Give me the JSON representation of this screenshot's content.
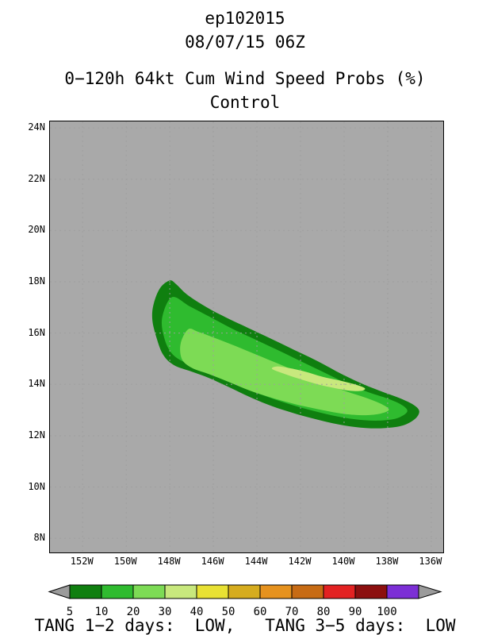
{
  "header": {
    "storm_id": "ep102015",
    "datetime": "08/07/15 06Z",
    "title": "0−120h 64kt Cum Wind Speed Probs (%)",
    "subtitle": "Control"
  },
  "footer": {
    "text": "TANG 1−2 days:  LOW,   TANG 3−5 days:  LOW"
  },
  "chart_data": {
    "type": "heatmap",
    "title": "0−120h 64kt Cum Wind Speed Probs (%)",
    "subtitle": "Control",
    "storm_id": "ep102015",
    "init_time": "08/07/15 06Z",
    "background_color": "#a9a9a9",
    "grid": true,
    "projection": {
      "lon_west": 153.5,
      "lon_east": 135.45,
      "lat_north": 24.25,
      "lat_south": 7.45
    },
    "lat_ticks": [
      {
        "value": 24,
        "label": "24N"
      },
      {
        "value": 22,
        "label": "22N"
      },
      {
        "value": 20,
        "label": "20N"
      },
      {
        "value": 18,
        "label": "18N"
      },
      {
        "value": 16,
        "label": "16N"
      },
      {
        "value": 14,
        "label": "14N"
      },
      {
        "value": 12,
        "label": "12N"
      },
      {
        "value": 10,
        "label": "10N"
      },
      {
        "value": 8,
        "label": "8N"
      }
    ],
    "lon_ticks": [
      {
        "value": 152,
        "label": "152W"
      },
      {
        "value": 150,
        "label": "150W"
      },
      {
        "value": 148,
        "label": "148W"
      },
      {
        "value": 146,
        "label": "146W"
      },
      {
        "value": 144,
        "label": "144W"
      },
      {
        "value": 142,
        "label": "142W"
      },
      {
        "value": 140,
        "label": "140W"
      },
      {
        "value": 138,
        "label": "138W"
      },
      {
        "value": 136,
        "label": "136W"
      }
    ],
    "contours_pct": [
      {
        "level": 5,
        "color": "#0f7f0f",
        "points_lon_lat": [
          [
            148.0,
            18.05
          ],
          [
            148.45,
            17.75
          ],
          [
            148.75,
            17.1
          ],
          [
            148.8,
            16.5
          ],
          [
            148.6,
            15.8
          ],
          [
            148.3,
            15.15
          ],
          [
            147.8,
            14.75
          ],
          [
            147.0,
            14.5
          ],
          [
            146.2,
            14.25
          ],
          [
            145.3,
            13.9
          ],
          [
            144.3,
            13.5
          ],
          [
            143.3,
            13.15
          ],
          [
            142.2,
            12.85
          ],
          [
            141.1,
            12.6
          ],
          [
            140.0,
            12.4
          ],
          [
            139.0,
            12.3
          ],
          [
            138.1,
            12.3
          ],
          [
            137.3,
            12.4
          ],
          [
            136.75,
            12.65
          ],
          [
            136.55,
            12.95
          ],
          [
            136.8,
            13.2
          ],
          [
            137.4,
            13.45
          ],
          [
            138.2,
            13.7
          ],
          [
            139.1,
            14.0
          ],
          [
            140.1,
            14.4
          ],
          [
            141.2,
            14.9
          ],
          [
            142.3,
            15.35
          ],
          [
            143.4,
            15.8
          ],
          [
            144.4,
            16.2
          ],
          [
            145.4,
            16.6
          ],
          [
            146.3,
            17.0
          ],
          [
            147.2,
            17.5
          ],
          [
            147.7,
            17.9
          ]
        ]
      },
      {
        "level": 10,
        "color": "#2fbb2f",
        "points_lon_lat": [
          [
            147.9,
            17.4
          ],
          [
            148.35,
            16.6
          ],
          [
            148.25,
            15.8
          ],
          [
            147.9,
            15.2
          ],
          [
            147.3,
            14.85
          ],
          [
            146.4,
            14.55
          ],
          [
            145.4,
            14.2
          ],
          [
            144.4,
            13.8
          ],
          [
            143.3,
            13.45
          ],
          [
            142.2,
            13.15
          ],
          [
            141.1,
            12.9
          ],
          [
            140.0,
            12.7
          ],
          [
            139.0,
            12.6
          ],
          [
            138.15,
            12.6
          ],
          [
            137.5,
            12.7
          ],
          [
            137.1,
            12.95
          ],
          [
            137.35,
            13.2
          ],
          [
            138.0,
            13.45
          ],
          [
            138.9,
            13.7
          ],
          [
            139.9,
            14.05
          ],
          [
            141.0,
            14.5
          ],
          [
            142.1,
            14.95
          ],
          [
            143.2,
            15.4
          ],
          [
            144.2,
            15.8
          ],
          [
            145.2,
            16.2
          ],
          [
            146.2,
            16.65
          ],
          [
            147.1,
            17.05
          ]
        ]
      },
      {
        "level": 20,
        "color": "#7ddb55",
        "points_lon_lat": [
          [
            147.15,
            16.15
          ],
          [
            147.5,
            15.6
          ],
          [
            147.45,
            15.0
          ],
          [
            147.0,
            14.65
          ],
          [
            146.2,
            14.4
          ],
          [
            145.3,
            14.1
          ],
          [
            144.3,
            13.75
          ],
          [
            143.2,
            13.45
          ],
          [
            142.1,
            13.2
          ],
          [
            141.0,
            13.0
          ],
          [
            140.0,
            12.85
          ],
          [
            139.1,
            12.8
          ],
          [
            138.4,
            12.85
          ],
          [
            137.95,
            13.0
          ],
          [
            138.2,
            13.2
          ],
          [
            138.9,
            13.45
          ],
          [
            139.8,
            13.7
          ],
          [
            140.8,
            14.0
          ],
          [
            141.9,
            14.4
          ],
          [
            143.0,
            14.8
          ],
          [
            144.0,
            15.15
          ],
          [
            145.0,
            15.5
          ],
          [
            145.9,
            15.8
          ],
          [
            146.7,
            16.05
          ]
        ]
      },
      {
        "level": 30,
        "color": "#c8e87d",
        "points_lon_lat": [
          [
            143.3,
            14.6
          ],
          [
            142.7,
            14.4
          ],
          [
            142.0,
            14.2
          ],
          [
            141.2,
            14.0
          ],
          [
            140.4,
            13.85
          ],
          [
            139.7,
            13.75
          ],
          [
            139.2,
            13.75
          ],
          [
            139.05,
            13.85
          ],
          [
            139.5,
            14.0
          ],
          [
            140.2,
            14.15
          ],
          [
            141.0,
            14.3
          ],
          [
            141.8,
            14.5
          ],
          [
            142.6,
            14.65
          ],
          [
            143.1,
            14.7
          ]
        ]
      }
    ],
    "colorbar": {
      "values": [
        5,
        10,
        20,
        30,
        40,
        50,
        60,
        70,
        80,
        90,
        100
      ],
      "colors": [
        "#0f7f0f",
        "#2fbb2f",
        "#7ddb55",
        "#c8e87d",
        "#e8e133",
        "#d6ac1e",
        "#e6921e",
        "#c76b14",
        "#e32222",
        "#8c0f0f",
        "#7c2fd6"
      ],
      "arrow_color": "#9b9b9b"
    }
  }
}
